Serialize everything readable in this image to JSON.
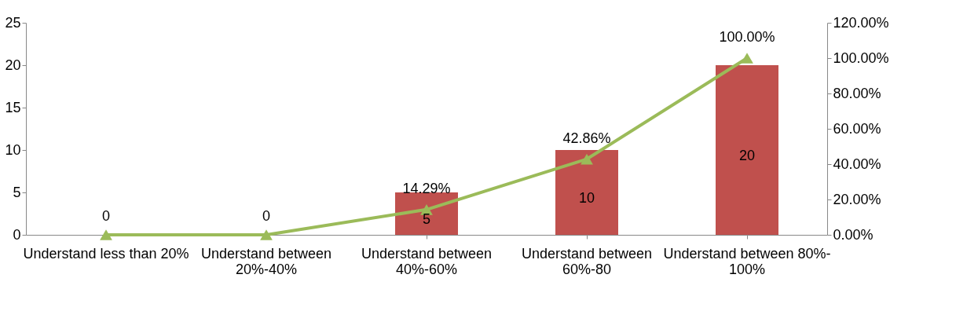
{
  "chart_data": {
    "type": "bar",
    "categories": [
      "Understand less than 20%",
      "Understand between 20%-40%",
      "Understand between 40%-60%",
      "Understand between 60%-80",
      "Understand between 80%- 100%"
    ],
    "series": [
      {
        "color": "#c0504d",
        "values": [
          0,
          0,
          5,
          10,
          20
        ],
        "data_labels": true
      },
      {
        "type": "line",
        "axis": "y2",
        "color": "#9bbb59",
        "values": [
          0,
          0,
          14.29,
          42.86,
          100
        ],
        "marker": "triangle",
        "value_labels": [
          null,
          null,
          "14.29%",
          "42.86%",
          "100.00%"
        ]
      }
    ],
    "ylim": [
      0,
      25
    ],
    "yticks": [
      0,
      5,
      10,
      15,
      20,
      25
    ],
    "y2lim": [
      0,
      120
    ],
    "y2ticks": [
      {
        "value": 0,
        "label": "0.00%"
      },
      {
        "value": 20,
        "label": "20.00%"
      },
      {
        "value": 40,
        "label": "40.00%"
      },
      {
        "value": 60,
        "label": "60.00%"
      },
      {
        "value": 80,
        "label": "80.00%"
      },
      {
        "value": 100,
        "label": "100.00%"
      },
      {
        "value": 120,
        "label": "120.00%"
      }
    ],
    "grid": false,
    "legend": false
  }
}
